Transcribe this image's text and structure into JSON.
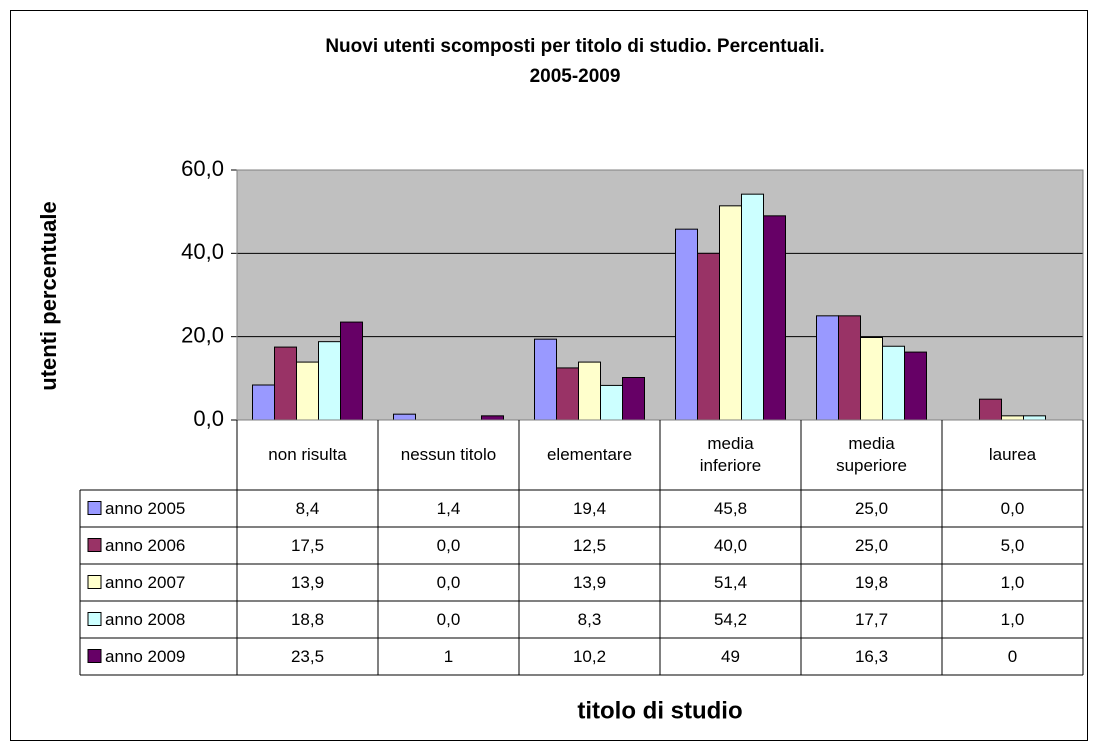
{
  "chart_data": {
    "type": "bar",
    "title": "Nuovi utenti scomposti per titolo di studio. Percentuali.",
    "subtitle": "2005-2009",
    "y_label": "utenti percentuale",
    "x_label": "titolo di studio",
    "categories": [
      "non risulta",
      "nessun titolo",
      "elementare",
      "media inferiore",
      "media superiore",
      "laurea"
    ],
    "series": [
      {
        "name": "anno 2005",
        "color": "#9999ff",
        "values": [
          8.4,
          1.4,
          19.4,
          45.8,
          25.0,
          0.0
        ],
        "value_labels": [
          "8,4",
          "1,4",
          "19,4",
          "45,8",
          "25,0",
          "0,0"
        ]
      },
      {
        "name": "anno 2006",
        "color": "#993366",
        "values": [
          17.5,
          0.0,
          12.5,
          40.0,
          25.0,
          5.0
        ],
        "value_labels": [
          "17,5",
          "0,0",
          "12,5",
          "40,0",
          "25,0",
          "5,0"
        ]
      },
      {
        "name": "anno 2007",
        "color": "#ffffcc",
        "values": [
          13.9,
          0.0,
          13.9,
          51.4,
          19.8,
          1.0
        ],
        "value_labels": [
          "13,9",
          "0,0",
          "13,9",
          "51,4",
          "19,8",
          "1,0"
        ]
      },
      {
        "name": "anno 2008",
        "color": "#ccffff",
        "values": [
          18.8,
          0.0,
          8.3,
          54.2,
          17.7,
          1.0
        ],
        "value_labels": [
          "18,8",
          "0,0",
          "8,3",
          "54,2",
          "17,7",
          "1,0"
        ]
      },
      {
        "name": "anno 2009",
        "color": "#660066",
        "values": [
          23.5,
          1,
          10.2,
          49,
          16.3,
          0
        ],
        "value_labels": [
          "23,5",
          "1",
          "10,2",
          "49",
          "16,3",
          "0"
        ]
      }
    ],
    "ylim": [
      0,
      60
    ],
    "yticks": [
      {
        "value": 0,
        "label": "0,0"
      },
      {
        "value": 20,
        "label": "20,0"
      },
      {
        "value": 40,
        "label": "40,0"
      },
      {
        "value": 60,
        "label": "60,0"
      }
    ],
    "grid": true
  }
}
